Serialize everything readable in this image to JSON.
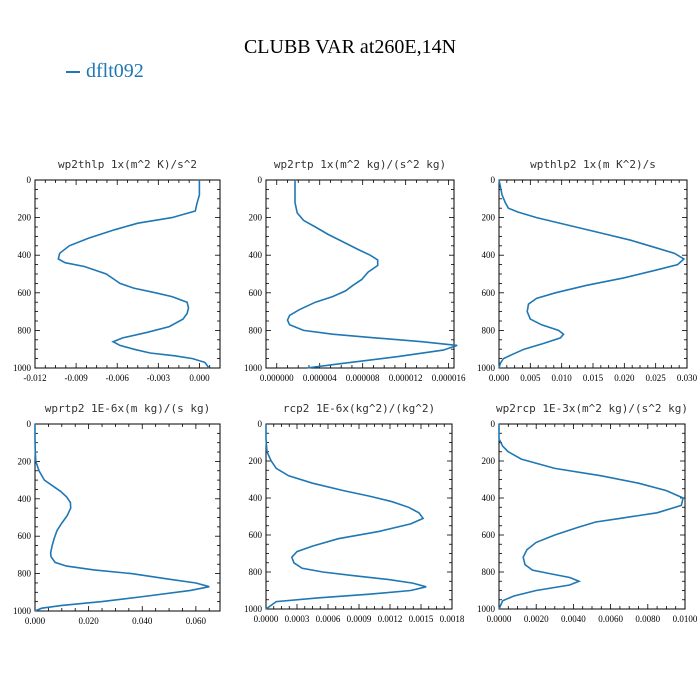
{
  "title": "CLUBB VAR at260E,14N",
  "legend": {
    "label": "dflt092",
    "color": "#1f77b4"
  },
  "chart_data": [
    {
      "type": "line",
      "title": "wp2thlp  1x(m^2 K)/s^2",
      "series": [
        {
          "name": "dflt092",
          "color": "#1f77b4",
          "x": [
            0.0,
            0.0,
            0.0,
            -0.0002,
            -0.0003,
            -0.002,
            -0.0045,
            -0.0062,
            -0.0081,
            -0.0095,
            -0.0102,
            -0.0103,
            -0.0098,
            -0.0084,
            -0.0068,
            -0.0062,
            -0.0058,
            -0.0048,
            -0.0032,
            -0.002,
            -0.0009,
            -0.0008,
            -0.0009,
            -0.0012,
            -0.0022,
            -0.0038,
            -0.0056,
            -0.0063,
            -0.0058,
            -0.0048,
            -0.0036,
            -0.0018,
            -0.0005,
            0.0004,
            0.0007
          ],
          "y": [
            0,
            40,
            80,
            130,
            165,
            200,
            230,
            265,
            310,
            350,
            390,
            420,
            440,
            460,
            500,
            530,
            550,
            575,
            600,
            620,
            650,
            680,
            710,
            740,
            780,
            810,
            840,
            860,
            880,
            900,
            920,
            935,
            950,
            970,
            1000
          ]
        }
      ],
      "xticks": [
        "-0.012",
        "-0.009",
        "-0.006",
        "-0.003",
        "0.000"
      ],
      "xtick_values": [
        -0.012,
        -0.009,
        -0.006,
        -0.003,
        0.0
      ],
      "yticks": [
        "0",
        "200",
        "400",
        "600",
        "800",
        "1000"
      ],
      "xlim": [
        -0.012,
        0.0015
      ],
      "ylim": [
        0,
        1000
      ],
      "y_inverted": true
    },
    {
      "type": "line",
      "title": "wp2rtp  1x(m^2 kg)/(s^2 kg)",
      "series": [
        {
          "name": "dflt092",
          "color": "#1f77b4",
          "x": [
            1.7e-06,
            1.7e-06,
            1.7e-06,
            1.7e-06,
            1.9e-06,
            2.5e-06,
            3.6e-06,
            4.8e-06,
            6.2e-06,
            7.6e-06,
            8.7e-06,
            9.4e-06,
            9.4e-06,
            8.5e-06,
            7.9e-06,
            7.1e-06,
            6.4e-06,
            5.2e-06,
            3.6e-06,
            2.1e-06,
            1.2e-06,
            1e-06,
            1.2e-06,
            2.5e-06,
            5.2e-06,
            9.2e-06,
            1.35e-05,
            1.68e-05,
            1.55e-05,
            1.12e-05,
            6.2e-06,
            2.8e-06
          ],
          "y": [
            0,
            40,
            80,
            120,
            175,
            215,
            250,
            290,
            330,
            370,
            400,
            425,
            455,
            490,
            530,
            560,
            590,
            620,
            650,
            690,
            720,
            745,
            770,
            800,
            820,
            840,
            860,
            880,
            905,
            940,
            975,
            1000
          ],
          "comment": ""
        }
      ],
      "xticks": [
        "0.000000",
        "0.000004",
        "0.000008",
        "0.000012",
        "0.000016"
      ],
      "xtick_values": [
        0.0,
        4e-06,
        8e-06,
        1.2e-05,
        1.6e-05
      ],
      "yticks": [
        "0",
        "200",
        "400",
        "600",
        "800",
        "1000"
      ],
      "xlim": [
        -1e-06,
        1.65e-05
      ],
      "ylim": [
        0,
        1000
      ],
      "y_inverted": true
    },
    {
      "type": "line",
      "title": "wpthlp2  1x(m K^2)/s",
      "series": [
        {
          "name": "dflt092",
          "color": "#1f77b4",
          "x": [
            0.0,
            0.0005,
            0.001,
            0.0015,
            0.003,
            0.006,
            0.011,
            0.016,
            0.021,
            0.025,
            0.028,
            0.0295,
            0.0285,
            0.025,
            0.02,
            0.014,
            0.009,
            0.006,
            0.0047,
            0.0045,
            0.005,
            0.0068,
            0.0095,
            0.0103,
            0.0098,
            0.007,
            0.004,
            0.002,
            0.0007,
            0.0002,
            0.0
          ],
          "y": [
            0,
            80,
            120,
            150,
            170,
            200,
            240,
            280,
            320,
            360,
            390,
            420,
            450,
            480,
            520,
            560,
            600,
            630,
            660,
            700,
            740,
            770,
            800,
            820,
            840,
            870,
            900,
            930,
            950,
            975,
            1000
          ]
        }
      ],
      "xticks": [
        "0.000",
        "0.005",
        "0.010",
        "0.015",
        "0.020",
        "0.025",
        "0.030"
      ],
      "xtick_values": [
        0.0,
        0.005,
        0.01,
        0.015,
        0.02,
        0.025,
        0.03
      ],
      "yticks": [
        "0",
        "200",
        "400",
        "600",
        "800",
        "1000"
      ],
      "xlim": [
        0.0,
        0.03
      ],
      "ylim": [
        0,
        1000
      ],
      "y_inverted": true
    },
    {
      "type": "line",
      "title": "wprtp2  1E-6x(m kg)/(s kg)",
      "series": [
        {
          "name": "dflt092",
          "color": "#1f77b4",
          "x": [
            0.0,
            0.0,
            0.0001,
            0.0003,
            0.0015,
            0.0035,
            0.0065,
            0.0095,
            0.0118,
            0.0132,
            0.0133,
            0.012,
            0.01,
            0.0082,
            0.0072,
            0.0064,
            0.0058,
            0.006,
            0.0075,
            0.0118,
            0.022,
            0.036,
            0.05,
            0.06,
            0.065,
            0.058,
            0.042,
            0.025,
            0.01,
            0.0025,
            0.0
          ],
          "y": [
            0,
            80,
            150,
            200,
            250,
            300,
            330,
            360,
            390,
            420,
            450,
            490,
            530,
            570,
            610,
            650,
            690,
            710,
            740,
            760,
            780,
            800,
            830,
            850,
            870,
            890,
            920,
            950,
            970,
            985,
            1000
          ]
        }
      ],
      "xticks": [
        "0.000",
        "0.020",
        "0.040",
        "0.060"
      ],
      "xtick_values": [
        0.0,
        0.02,
        0.04,
        0.06
      ],
      "yticks": [
        "0",
        "200",
        "400",
        "600",
        "800",
        "1000"
      ],
      "xlim": [
        0.0,
        0.069
      ],
      "ylim": [
        0,
        1000
      ],
      "y_inverted": true
    },
    {
      "type": "line",
      "title": "rcp2  1E-6x(kg^2)/(kg^2)",
      "series": [
        {
          "name": "dflt092",
          "color": "#1f77b4",
          "x": [
            0.0,
            0.0,
            1e-05,
            5e-05,
            0.0001,
            0.00022,
            0.00045,
            0.00075,
            0.001,
            0.00122,
            0.00138,
            0.00148,
            0.00152,
            0.0014,
            0.0011,
            0.0007,
            0.00045,
            0.0003,
            0.00025,
            0.00027,
            0.00035,
            0.00055,
            0.00085,
            0.00118,
            0.00142,
            0.00155,
            0.0014,
            0.001,
            0.0005,
            0.0001,
            0.0
          ],
          "y": [
            0,
            80,
            150,
            200,
            240,
            280,
            320,
            360,
            390,
            420,
            450,
            480,
            510,
            540,
            580,
            620,
            660,
            690,
            720,
            750,
            780,
            800,
            820,
            840,
            860,
            880,
            900,
            920,
            940,
            960,
            1000
          ]
        }
      ],
      "xticks": [
        "0.0000",
        "0.0003",
        "0.0006",
        "0.0009",
        "0.0012",
        "0.0015",
        "0.0018"
      ],
      "xtick_values": [
        0.0,
        0.0003,
        0.0006,
        0.0009,
        0.0012,
        0.0015,
        0.0018
      ],
      "yticks": [
        "0",
        "200",
        "400",
        "600",
        "800",
        "1000"
      ],
      "xlim": [
        0.0,
        0.0018
      ],
      "ylim": [
        0,
        1000
      ],
      "y_inverted": true
    },
    {
      "type": "line",
      "title": "wp2rcp  1E-3x(m^2 kg)/(s^2 kg)",
      "series": [
        {
          "name": "dflt092",
          "color": "#1f77b4",
          "x": [
            0.0,
            0.0,
            0.0002,
            0.0005,
            0.0012,
            0.003,
            0.0055,
            0.0075,
            0.009,
            0.0099,
            0.0098,
            0.0085,
            0.0065,
            0.0052,
            0.0042,
            0.003,
            0.002,
            0.0015,
            0.0013,
            0.0014,
            0.0018,
            0.0028,
            0.0038,
            0.0043,
            0.0038,
            0.002,
            0.0008,
            0.0002,
            0.0
          ],
          "y": [
            0,
            80,
            120,
            150,
            190,
            240,
            280,
            320,
            360,
            400,
            440,
            480,
            510,
            530,
            560,
            600,
            640,
            680,
            720,
            760,
            790,
            810,
            830,
            850,
            870,
            900,
            930,
            955,
            1000
          ]
        }
      ],
      "xticks": [
        "0.0000",
        "0.0020",
        "0.0040",
        "0.0060",
        "0.0080",
        "0.0100"
      ],
      "xtick_values": [
        0.0,
        0.002,
        0.004,
        0.006,
        0.008,
        0.01
      ],
      "yticks": [
        "0",
        "200",
        "400",
        "600",
        "800",
        "1000"
      ],
      "xlim": [
        0.0,
        0.01
      ],
      "ylim": [
        0,
        1000
      ],
      "y_inverted": true
    }
  ]
}
